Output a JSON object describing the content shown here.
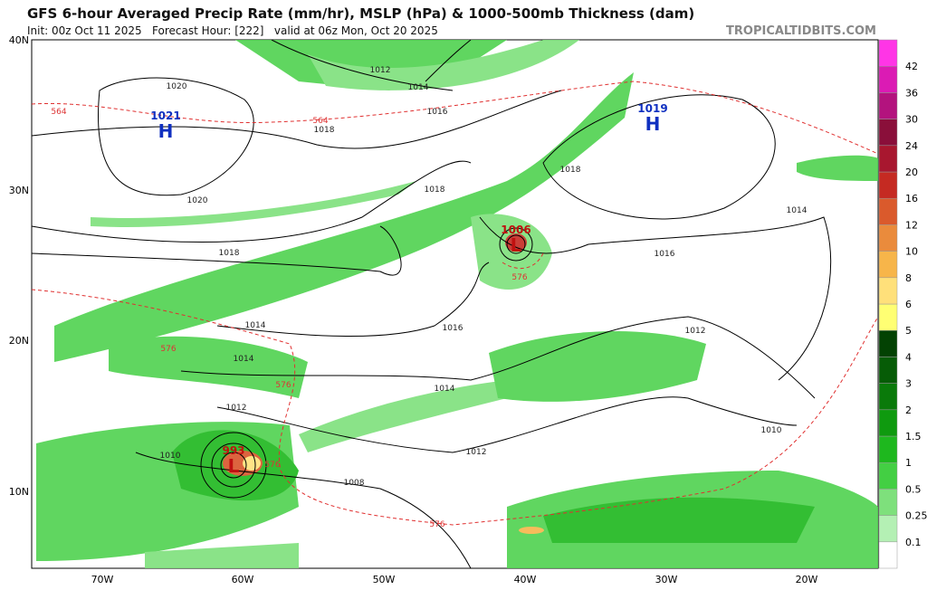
{
  "header": {
    "title": "GFS 6-hour Averaged Precip Rate (mm/hr), MSLP (hPa) & 1000-500mb Thickness (dam)",
    "subtitle": "Init: 00z Oct 11 2025   Forecast Hour: [222]   valid at 06z Mon, Oct 20 2025",
    "credit": "TROPICALTIDBITS.COM"
  },
  "map": {
    "lat_labels": [
      "40N",
      "30N",
      "20N",
      "10N"
    ],
    "lon_labels": [
      "70W",
      "60W",
      "50W",
      "40W",
      "30W",
      "20W"
    ],
    "centers": [
      {
        "letter": "H",
        "value": "1021"
      },
      {
        "letter": "H",
        "value": "1019"
      },
      {
        "letter": "L",
        "value": "1006"
      },
      {
        "letter": "L",
        "value": "993"
      }
    ],
    "isobar_labels": [
      "1020",
      "1020",
      "1012",
      "1014",
      "1016",
      "1018",
      "1018",
      "1018",
      "1018",
      "1016",
      "1014",
      "1016",
      "1014",
      "1014",
      "1014",
      "1012",
      "1012",
      "1012",
      "1010",
      "1010",
      "1008"
    ],
    "thickness_labels": [
      "564",
      "564",
      "576",
      "576",
      "576",
      "576",
      "576"
    ]
  },
  "colorbar": {
    "labels": [
      "0.1",
      "0.25",
      "0.5",
      "1",
      "1.5",
      "2",
      "3",
      "4",
      "5",
      "6",
      "8",
      "10",
      "12",
      "16",
      "20",
      "24",
      "30",
      "36",
      "42"
    ],
    "colors": [
      "#ffffff",
      "#b4f0b4",
      "#7ee07c",
      "#43cf43",
      "#1eb81e",
      "#0f9a0f",
      "#0a7a0a",
      "#065c06",
      "#034203",
      "#ffff73",
      "#ffe07a",
      "#f7b54a",
      "#ea8b3c",
      "#da5a2c",
      "#c52a22",
      "#a8172f",
      "#8a0f3a",
      "#b3137e",
      "#db1bb4",
      "#ff35e6"
    ]
  }
}
